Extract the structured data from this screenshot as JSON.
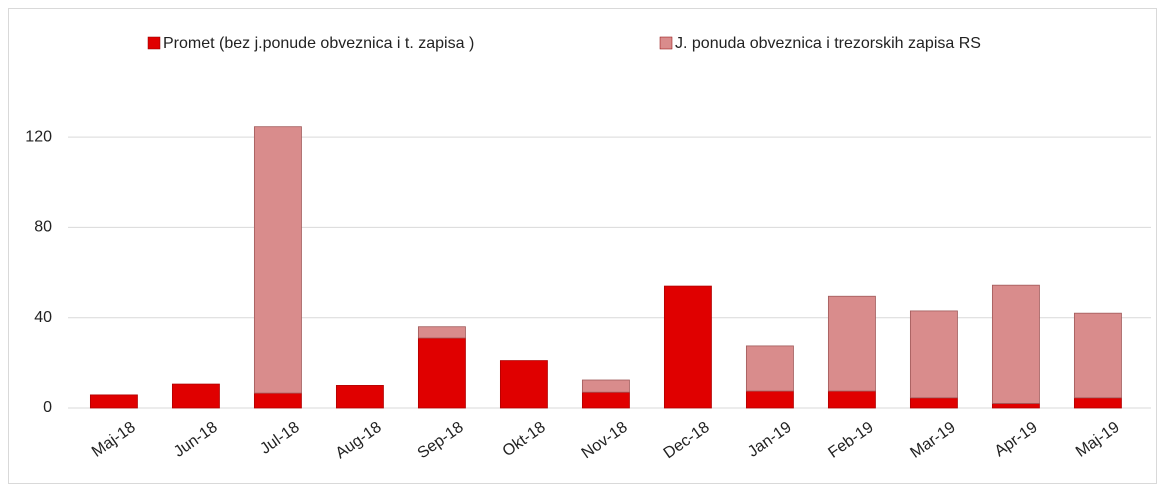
{
  "chart_data": {
    "type": "stacked_bar",
    "categories": [
      "Maj-18",
      "Jun-18",
      "Jul-18",
      "Aug-18",
      "Sep-18",
      "Okt-18",
      "Nov-18",
      "Dec-18",
      "Jan-19",
      "Feb-19",
      "Mar-19",
      "Apr-19",
      "Maj-19"
    ],
    "series": [
      {
        "name": "Promet (bez j.ponude obveznica i t. zapisa )",
        "color": "#e00000",
        "values": [
          5.8,
          10.6,
          6.6,
          10,
          31,
          21,
          7,
          54,
          7.5,
          7.5,
          4.5,
          2,
          4.5
        ]
      },
      {
        "name": "J. ponuda obveznica i trezorskih zapisa RS",
        "color": "#d98c8c",
        "values": [
          0,
          0,
          118,
          0,
          5,
          0,
          5.4,
          0,
          20,
          42,
          38.5,
          52.4,
          37.5
        ]
      }
    ],
    "ylim": [
      0,
      130
    ],
    "yticks": [
      0,
      40,
      80,
      120
    ],
    "grid": true,
    "legend": "top"
  }
}
